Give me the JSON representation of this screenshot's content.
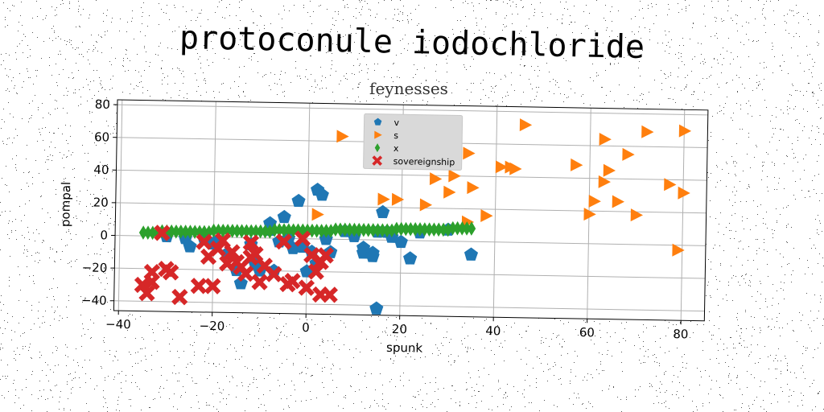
{
  "figure": {
    "suptitle": "protoconule iodochloride"
  },
  "chart_data": {
    "type": "scatter",
    "title": "feynesses",
    "xlabel": "spunk",
    "ylabel": "pompal",
    "xlim": [
      -41,
      85
    ],
    "ylim": [
      -46,
      83
    ],
    "xticks": [
      -40,
      -20,
      0,
      20,
      40,
      60,
      80
    ],
    "yticks": [
      -40,
      -20,
      0,
      20,
      40,
      60,
      80
    ],
    "grid": true,
    "legend": "top-center",
    "series": [
      {
        "name": "v",
        "marker": "pentagon",
        "color": "#1f77b4",
        "points": [
          [
            -30,
            0
          ],
          [
            -26,
            -1
          ],
          [
            -25,
            -6
          ],
          [
            -22,
            -1
          ],
          [
            -20,
            -4
          ],
          [
            -19,
            -2
          ],
          [
            -17,
            -10
          ],
          [
            -15,
            -20
          ],
          [
            -14,
            -28
          ],
          [
            -12,
            -4
          ],
          [
            -11,
            -16
          ],
          [
            -10,
            -20
          ],
          [
            -8,
            9
          ],
          [
            -8,
            5
          ],
          [
            -7,
            -20
          ],
          [
            -6,
            -2
          ],
          [
            -5,
            13
          ],
          [
            -4,
            0
          ],
          [
            -3,
            -6
          ],
          [
            -2,
            23
          ],
          [
            -1,
            -5
          ],
          [
            0,
            -20
          ],
          [
            1,
            -8
          ],
          [
            2,
            30
          ],
          [
            2,
            -15
          ],
          [
            3,
            27
          ],
          [
            4,
            0
          ],
          [
            5,
            -8
          ],
          [
            8,
            5
          ],
          [
            10,
            2
          ],
          [
            12,
            -5
          ],
          [
            12,
            -8
          ],
          [
            14,
            -8
          ],
          [
            14,
            -10
          ],
          [
            15,
            5
          ],
          [
            15,
            -42
          ],
          [
            16,
            17
          ],
          [
            17,
            5
          ],
          [
            18,
            2
          ],
          [
            20,
            -1
          ],
          [
            22,
            -11
          ],
          [
            24,
            5
          ],
          [
            30,
            7
          ],
          [
            35,
            -8
          ]
        ]
      },
      {
        "name": "s",
        "marker": "triangle-right",
        "color": "#ff7f0e",
        "points": [
          [
            2,
            15
          ],
          [
            7,
            63
          ],
          [
            16,
            25
          ],
          [
            19,
            25
          ],
          [
            25,
            22
          ],
          [
            27,
            38
          ],
          [
            30,
            30
          ],
          [
            31,
            40
          ],
          [
            34,
            12
          ],
          [
            34,
            54
          ],
          [
            35,
            33
          ],
          [
            38,
            16
          ],
          [
            41,
            46
          ],
          [
            43,
            46
          ],
          [
            44,
            45
          ],
          [
            46,
            72
          ],
          [
            57,
            48
          ],
          [
            60,
            18
          ],
          [
            61,
            26
          ],
          [
            63,
            64
          ],
          [
            63,
            38
          ],
          [
            64,
            45
          ],
          [
            66,
            26
          ],
          [
            68,
            55
          ],
          [
            70,
            18
          ],
          [
            72,
            69
          ],
          [
            77,
            37
          ],
          [
            79,
            -3
          ],
          [
            80,
            32
          ],
          [
            80,
            70
          ]
        ]
      },
      {
        "name": "x",
        "marker": "diamond",
        "color": "#2ca02c",
        "points": [
          [
            -35,
            2
          ],
          [
            -34,
            2
          ],
          [
            -33,
            2
          ],
          [
            -32,
            2
          ],
          [
            -31,
            3
          ],
          [
            -30,
            3
          ],
          [
            -29,
            3
          ],
          [
            -28,
            3
          ],
          [
            -27,
            3
          ],
          [
            -26,
            3
          ],
          [
            -25,
            3
          ],
          [
            -24,
            3
          ],
          [
            -23,
            3
          ],
          [
            -22,
            3
          ],
          [
            -21,
            3
          ],
          [
            -20,
            4
          ],
          [
            -19,
            4
          ],
          [
            -18,
            4
          ],
          [
            -17,
            4
          ],
          [
            -16,
            4
          ],
          [
            -15,
            4
          ],
          [
            -14,
            4
          ],
          [
            -13,
            4
          ],
          [
            -12,
            4
          ],
          [
            -11,
            4
          ],
          [
            -10,
            4
          ],
          [
            -9,
            4
          ],
          [
            -8,
            4
          ],
          [
            -7,
            5
          ],
          [
            -6,
            5
          ],
          [
            -5,
            5
          ],
          [
            -4,
            5
          ],
          [
            -3,
            5
          ],
          [
            -2,
            5
          ],
          [
            -1,
            5
          ],
          [
            0,
            5
          ],
          [
            1,
            5
          ],
          [
            2,
            5
          ],
          [
            3,
            5
          ],
          [
            4,
            5
          ],
          [
            5,
            5
          ],
          [
            6,
            6
          ],
          [
            7,
            6
          ],
          [
            8,
            6
          ],
          [
            9,
            6
          ],
          [
            10,
            6
          ],
          [
            11,
            6
          ],
          [
            12,
            6
          ],
          [
            13,
            6
          ],
          [
            14,
            6
          ],
          [
            15,
            6
          ],
          [
            16,
            6
          ],
          [
            17,
            6
          ],
          [
            18,
            6
          ],
          [
            19,
            7
          ],
          [
            20,
            7
          ],
          [
            21,
            7
          ],
          [
            22,
            7
          ],
          [
            23,
            7
          ],
          [
            24,
            7
          ],
          [
            25,
            7
          ],
          [
            26,
            7
          ],
          [
            27,
            7
          ],
          [
            28,
            7
          ],
          [
            29,
            7
          ],
          [
            30,
            7
          ],
          [
            31,
            8
          ],
          [
            32,
            8
          ],
          [
            33,
            8
          ],
          [
            34,
            8
          ],
          [
            35,
            8
          ]
        ]
      },
      {
        "name": "sovereignship",
        "marker": "x-thick",
        "color": "#d62728",
        "points": [
          [
            -35,
            -30
          ],
          [
            -34,
            -35
          ],
          [
            -33,
            -28
          ],
          [
            -33,
            -22
          ],
          [
            -31,
            2
          ],
          [
            -30,
            -20
          ],
          [
            -29,
            -22
          ],
          [
            -27,
            -37
          ],
          [
            -23,
            -30
          ],
          [
            -22,
            -3
          ],
          [
            -21,
            -12
          ],
          [
            -20,
            -30
          ],
          [
            -19,
            -7
          ],
          [
            -18,
            -2
          ],
          [
            -17,
            -16
          ],
          [
            -16,
            -9
          ],
          [
            -15,
            -15
          ],
          [
            -14,
            -18
          ],
          [
            -13,
            -22
          ],
          [
            -12,
            -3
          ],
          [
            -12,
            -12
          ],
          [
            -11,
            -10
          ],
          [
            -10,
            -27
          ],
          [
            -9,
            -17
          ],
          [
            -7,
            -22
          ],
          [
            -5,
            -2
          ],
          [
            -4,
            -28
          ],
          [
            -3,
            -26
          ],
          [
            -1,
            0
          ],
          [
            0,
            -30
          ],
          [
            1,
            -10
          ],
          [
            2,
            -20
          ],
          [
            3,
            -14
          ],
          [
            3,
            -34
          ],
          [
            4,
            -10
          ],
          [
            5,
            -34
          ]
        ]
      }
    ]
  }
}
